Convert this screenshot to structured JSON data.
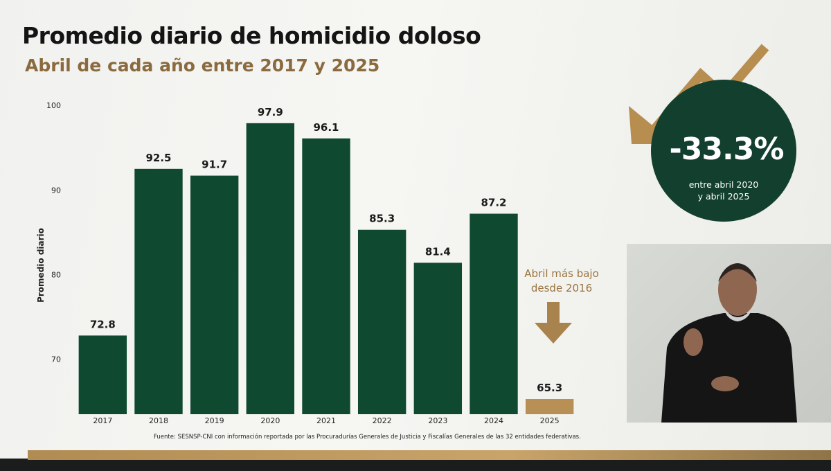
{
  "chart_data": {
    "type": "bar",
    "title": "Promedio diario de homicidio doloso",
    "subtitle": "Abril de cada año entre 2017 y 2025",
    "ylabel": "Promedio diario",
    "xlabel": "",
    "categories": [
      "2017",
      "2018",
      "2019",
      "2020",
      "2021",
      "2022",
      "2023",
      "2024",
      "2025"
    ],
    "values": [
      72.8,
      92.5,
      91.7,
      97.9,
      96.1,
      85.3,
      81.4,
      87.2,
      65.3
    ],
    "value_labels": [
      "72.8",
      "92.5",
      "91.7",
      "97.9",
      "96.1",
      "85.3",
      "81.4",
      "87.2",
      "65.3"
    ],
    "yticks": [
      70,
      80,
      90,
      100
    ],
    "ylim": [
      63.5,
      101
    ],
    "grid": false,
    "colors": {
      "bar": "#0f4a30",
      "highlight_bar": "#b89055",
      "accent": "#a9834d"
    }
  },
  "highlight": {
    "value": "-33.3%",
    "note_line1": "entre abril 2020",
    "note_line2": "y abril 2025",
    "circle_color": "#123f2e",
    "arrow_icon": "trend-down-arrow-icon"
  },
  "annotation": {
    "line1": "Abril más bajo",
    "line2": "desde 2016",
    "icon": "down-arrow-icon"
  },
  "source": "Fuente: SESNSP-CNI con información reportada por las Procuradurías Generales de Justicia y Fiscalías Generales de las 32 entidades federativas.",
  "video": {
    "content": "sign-language-interpreter"
  }
}
